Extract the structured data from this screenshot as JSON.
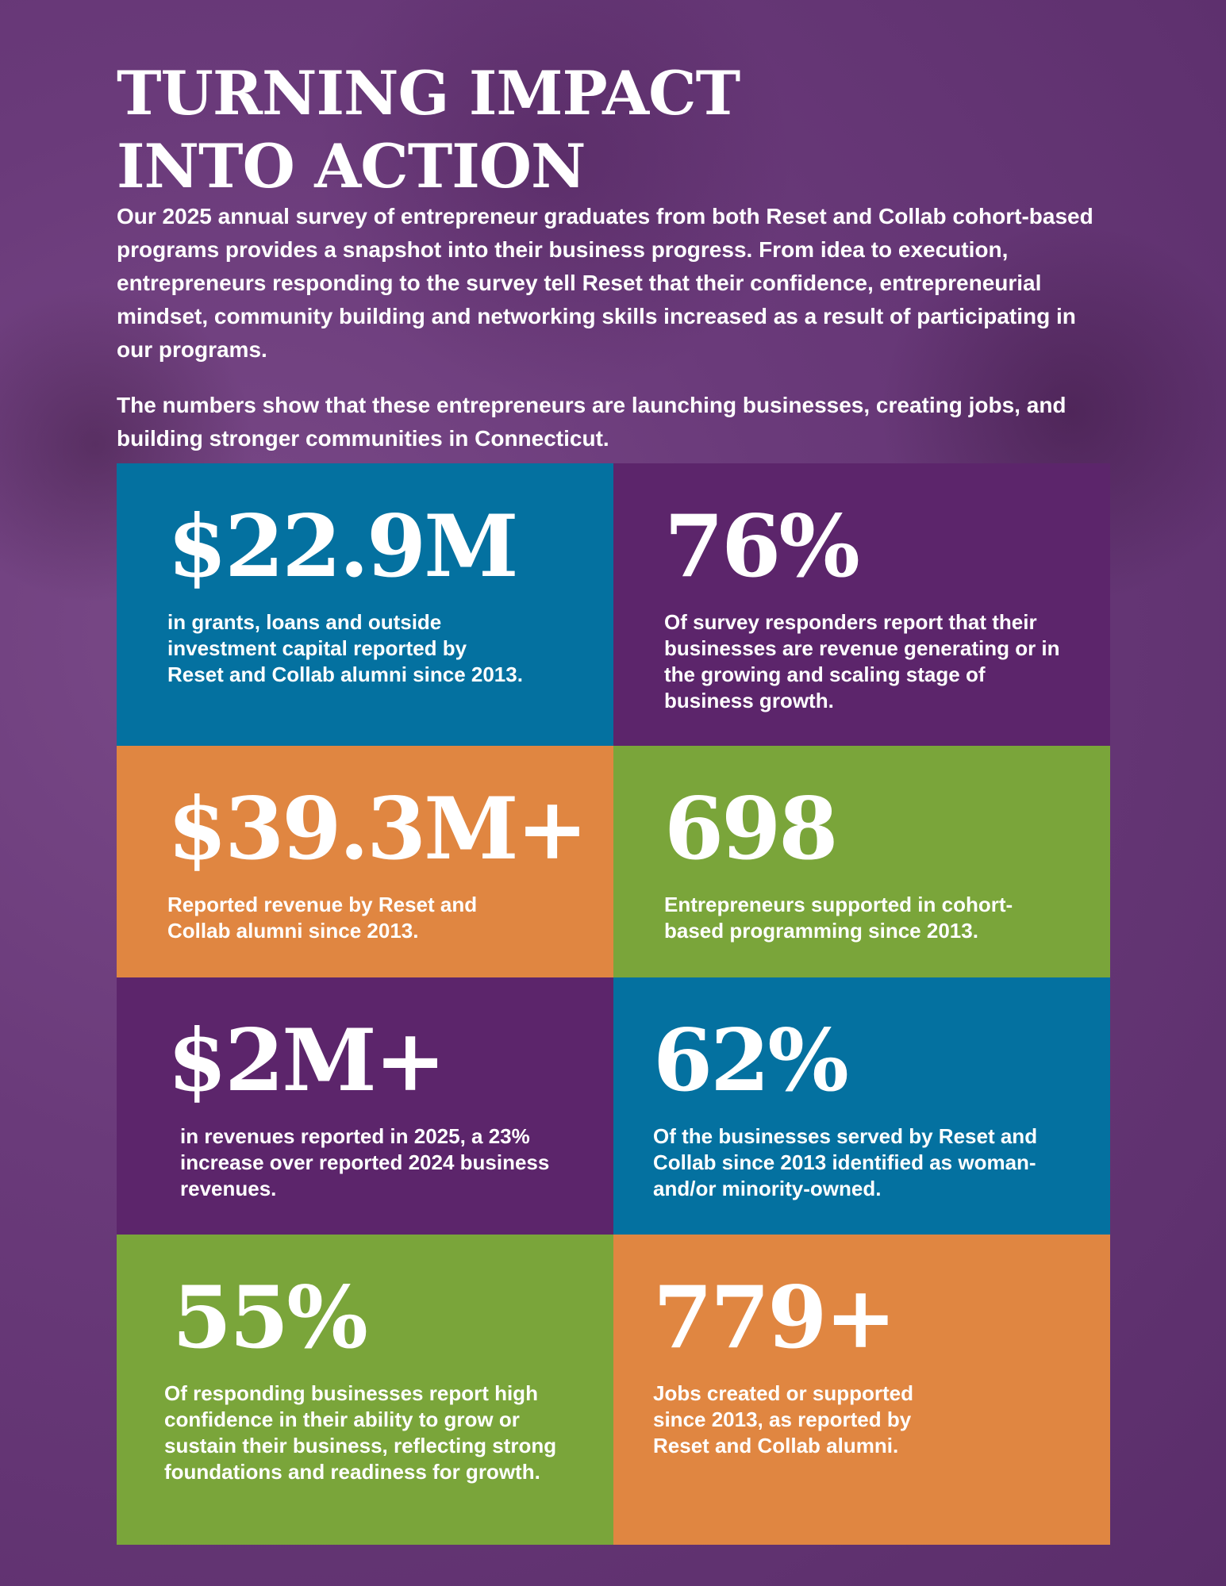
{
  "header": {
    "title": [
      "TURNING IMPACT",
      "INTO ACTION"
    ],
    "paragraphs": [
      "Our 2025 annual survey of entrepreneur graduates from both Reset and Collab cohort-based programs provides a snapshot into their business progress. From idea to execution, entrepreneurs responding to the survey tell Reset that their confidence, entrepreneurial mindset, community building and networking skills increased as a result of participating in our programs.",
      "The numbers show that these entrepreneurs are launching businesses, creating jobs, and building stronger communities in Connecticut."
    ]
  },
  "stats": [
    {
      "figure": "$22.9M",
      "text": "in grants, loans and outside investment capital reported by Reset and Collab alumni since 2013."
    },
    {
      "figure": "76%",
      "text": "Of survey responders report that their businesses are revenue generating or in the growing and scaling stage of business growth."
    },
    {
      "figure": "$39.3M+",
      "text": "Reported revenue by Reset and Collab alumni since 2013."
    },
    {
      "figure": "698",
      "text": "Entrepreneurs supported in cohort-based programming since 2013."
    },
    {
      "figure": "$2M+",
      "text": "in revenues reported in 2025, a 23% increase over reported 2024 business revenues."
    },
    {
      "figure": "62%",
      "text": "Of the businesses served by Reset and Collab since 2013 identified as woman- and/or minority-owned."
    },
    {
      "figure": "55%",
      "text": "Of responding businesses report high confidence in their ability to grow or sustain their business, reflecting strong foundations and readiness for growth."
    },
    {
      "figure": "779+",
      "text": "Jobs created or supported since 2013, as reported by Reset and Collab alumni."
    }
  ]
}
